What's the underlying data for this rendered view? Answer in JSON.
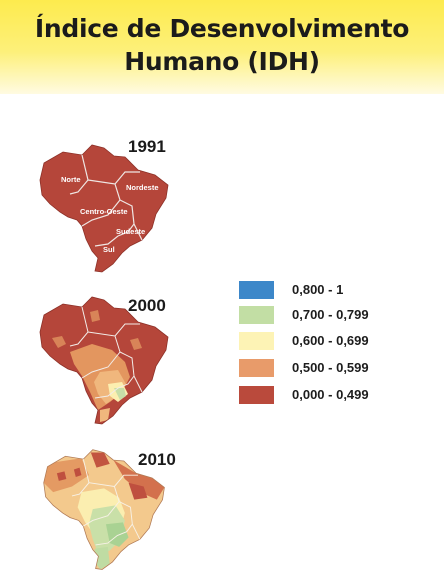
{
  "title_line1": "Índice de Desenvolvimento",
  "title_line2": "Humano (IDH)",
  "maps": [
    {
      "year": "1991",
      "regions": [
        "Norte",
        "Nordeste",
        "Centro-Oeste",
        "Sudeste",
        "Sul"
      ]
    },
    {
      "year": "2000"
    },
    {
      "year": "2010"
    }
  ],
  "legend": [
    {
      "label": "0,800 - 1",
      "color": "#3c87c9"
    },
    {
      "label": "0,700 - 0,799",
      "color": "#c2dea4"
    },
    {
      "label": "0,600 - 0,699",
      "color": "#fdf3b5"
    },
    {
      "label": "0,500 - 0,599",
      "color": "#e89b6a"
    },
    {
      "label": "0,000 - 0,499",
      "color": "#ba4a3c"
    }
  ]
}
